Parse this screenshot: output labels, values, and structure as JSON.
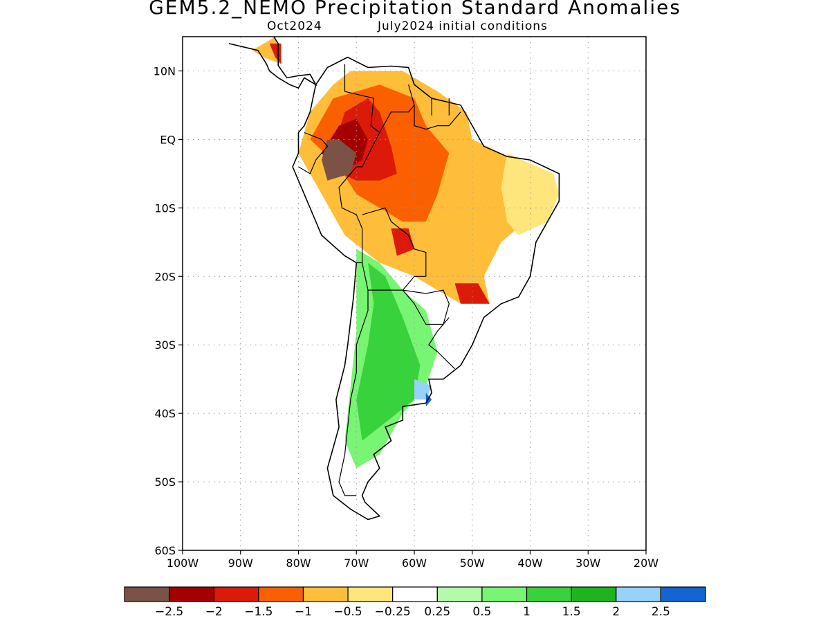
{
  "title": "GEM5.2_NEMO Precipitation Standard Anomalies",
  "subtitle_month": "Oct2024",
  "subtitle_init": "July2024 initial conditions",
  "map": {
    "lon_range": [
      -100,
      -20
    ],
    "lat_range": [
      -60,
      15
    ],
    "grid": "dotted",
    "lat_ticks": [
      {
        "value": 10,
        "label": "10N"
      },
      {
        "value": 0,
        "label": "EQ"
      },
      {
        "value": -10,
        "label": "10S"
      },
      {
        "value": -20,
        "label": "20S"
      },
      {
        "value": -30,
        "label": "30S"
      },
      {
        "value": -40,
        "label": "40S"
      },
      {
        "value": -50,
        "label": "50S"
      },
      {
        "value": -60,
        "label": "60S"
      }
    ],
    "lon_ticks": [
      {
        "value": -100,
        "label": "100W"
      },
      {
        "value": -90,
        "label": "90W"
      },
      {
        "value": -80,
        "label": "80W"
      },
      {
        "value": -70,
        "label": "70W"
      },
      {
        "value": -60,
        "label": "60W"
      },
      {
        "value": -50,
        "label": "50W"
      },
      {
        "value": -40,
        "label": "40W"
      },
      {
        "value": -30,
        "label": "30W"
      },
      {
        "value": -20,
        "label": "20W"
      }
    ]
  },
  "legend": {
    "colors": [
      "#7b5246",
      "#a50000",
      "#dc1a0a",
      "#fa6000",
      "#ffbe3a",
      "#ffe67c",
      "#ffffff",
      "#b3faaa",
      "#78f572",
      "#37d23c",
      "#1eb41e",
      "#96d2fa",
      "#1464d2"
    ],
    "labels": [
      "−2.5",
      "−2",
      "−1.5",
      "−1",
      "−0.5",
      "−0.25",
      "0.25",
      "0.5",
      "1",
      "1.5",
      "2",
      "2.5"
    ]
  },
  "anomaly_regions": [
    {
      "category": "dry_moderate",
      "color": "#ffbe3a",
      "lonlat": [
        [
          -71,
          10
        ],
        [
          -62,
          10
        ],
        [
          -56,
          7
        ],
        [
          -51,
          4
        ],
        [
          -50,
          0
        ],
        [
          -45,
          -2
        ],
        [
          -40,
          -5
        ],
        [
          -38,
          -10
        ],
        [
          -45,
          -15
        ],
        [
          -48,
          -20
        ],
        [
          -47,
          -24
        ],
        [
          -52,
          -24
        ],
        [
          -56,
          -22
        ],
        [
          -60,
          -20
        ],
        [
          -66,
          -18
        ],
        [
          -72,
          -14
        ],
        [
          -76,
          -8
        ],
        [
          -80,
          -2
        ],
        [
          -78,
          4
        ],
        [
          -74,
          8
        ]
      ]
    },
    {
      "category": "dry_weak",
      "color": "#ffe67c",
      "lonlat": [
        [
          -44,
          -2
        ],
        [
          -36,
          -5
        ],
        [
          -35,
          -8
        ],
        [
          -37,
          -12
        ],
        [
          -42,
          -14
        ],
        [
          -44,
          -12
        ],
        [
          -45,
          -7
        ]
      ]
    },
    {
      "category": "dry_strong",
      "color": "#fa6000",
      "lonlat": [
        [
          -74,
          6
        ],
        [
          -66,
          8
        ],
        [
          -60,
          6
        ],
        [
          -58,
          2
        ],
        [
          -54,
          -2
        ],
        [
          -56,
          -8
        ],
        [
          -58,
          -12
        ],
        [
          -62,
          -12
        ],
        [
          -66,
          -10
        ],
        [
          -70,
          -8
        ],
        [
          -73,
          -4
        ],
        [
          -78,
          0
        ]
      ]
    },
    {
      "category": "dry_very_strong",
      "color": "#dc1a0a",
      "lonlat": [
        [
          -72,
          4
        ],
        [
          -68,
          6
        ],
        [
          -66,
          4
        ],
        [
          -64,
          -1
        ],
        [
          -63,
          -5
        ],
        [
          -66,
          -6
        ],
        [
          -70,
          -6
        ],
        [
          -75,
          -4
        ]
      ]
    },
    {
      "category": "dry_very_strong",
      "color": "#dc1a0a",
      "lonlat": [
        [
          -64,
          -13
        ],
        [
          -61,
          -13
        ],
        [
          -60,
          -16
        ],
        [
          -63,
          -17
        ]
      ]
    },
    {
      "category": "dry_very_strong",
      "color": "#dc1a0a",
      "lonlat": [
        [
          -53,
          -21
        ],
        [
          -49,
          -21
        ],
        [
          -47,
          -24
        ],
        [
          -52,
          -24
        ]
      ]
    },
    {
      "category": "dry_extreme",
      "color": "#a50000",
      "lonlat": [
        [
          -73,
          2
        ],
        [
          -70,
          3
        ],
        [
          -68,
          0
        ],
        [
          -69,
          -3
        ],
        [
          -73,
          -5
        ],
        [
          -76,
          -2
        ]
      ]
    },
    {
      "category": "dry_exceptional",
      "color": "#7b5246",
      "lonlat": [
        [
          -75,
          0
        ],
        [
          -73,
          0
        ],
        [
          -70,
          -2
        ],
        [
          -71,
          -5
        ],
        [
          -75,
          -6
        ],
        [
          -76,
          -3
        ]
      ]
    },
    {
      "category": "wet_moderate",
      "color": "#78f572",
      "lonlat": [
        [
          -70,
          -16
        ],
        [
          -66,
          -18
        ],
        [
          -62,
          -22
        ],
        [
          -58,
          -25
        ],
        [
          -56,
          -31
        ],
        [
          -58,
          -36
        ],
        [
          -62,
          -40
        ],
        [
          -66,
          -46
        ],
        [
          -70,
          -48
        ],
        [
          -72,
          -44
        ],
        [
          -71,
          -36
        ],
        [
          -70,
          -28
        ],
        [
          -70,
          -20
        ]
      ]
    },
    {
      "category": "wet_strong",
      "color": "#37d23c",
      "lonlat": [
        [
          -68,
          -18
        ],
        [
          -65,
          -20
        ],
        [
          -62,
          -26
        ],
        [
          -59,
          -33
        ],
        [
          -60,
          -38
        ],
        [
          -66,
          -42
        ],
        [
          -69,
          -44
        ],
        [
          -70,
          -38
        ],
        [
          -68,
          -30
        ],
        [
          -67,
          -24
        ]
      ]
    },
    {
      "category": "wet_very_strong",
      "color": "#96d2fa",
      "lonlat": [
        [
          -60,
          -35
        ],
        [
          -57,
          -36
        ],
        [
          -58,
          -38
        ],
        [
          -60,
          -38
        ]
      ]
    },
    {
      "category": "wet_extreme",
      "color": "#1464d2",
      "lonlat": [
        [
          -58,
          -37
        ],
        [
          -57,
          -38
        ],
        [
          -58,
          -39
        ]
      ]
    },
    {
      "category": "dry_moderate",
      "color": "#ffbe3a",
      "lonlat": [
        [
          -88,
          13
        ],
        [
          -84,
          15
        ],
        [
          -83,
          11
        ],
        [
          -86,
          12
        ]
      ]
    },
    {
      "category": "dry_strong",
      "color": "#dc1a0a",
      "lonlat": [
        [
          -85,
          14
        ],
        [
          -83,
          14
        ],
        [
          -83,
          11
        ],
        [
          -84,
          12
        ]
      ]
    }
  ],
  "coastlines": [
    {
      "name": "south_america",
      "lonlat": [
        [
          -77,
          8
        ],
        [
          -75,
          10.5
        ],
        [
          -71.5,
          12
        ],
        [
          -68,
          10.5
        ],
        [
          -64,
          10.7
        ],
        [
          -61,
          10.5
        ],
        [
          -60,
          8
        ],
        [
          -57,
          6
        ],
        [
          -52,
          5
        ],
        [
          -50,
          2
        ],
        [
          -48,
          -1
        ],
        [
          -44,
          -2.5
        ],
        [
          -40,
          -3
        ],
        [
          -35,
          -5
        ],
        [
          -35,
          -9
        ],
        [
          -37,
          -12
        ],
        [
          -39,
          -15
        ],
        [
          -40,
          -20
        ],
        [
          -42,
          -23
        ],
        [
          -45,
          -24
        ],
        [
          -48,
          -26
        ],
        [
          -50,
          -30
        ],
        [
          -52,
          -33
        ],
        [
          -55,
          -35
        ],
        [
          -57.5,
          -35
        ],
        [
          -57,
          -37
        ],
        [
          -58,
          -38.5
        ],
        [
          -62,
          -39
        ],
        [
          -62,
          -41
        ],
        [
          -65,
          -42
        ],
        [
          -64,
          -44
        ],
        [
          -67,
          -46
        ],
        [
          -66,
          -48
        ],
        [
          -68,
          -50
        ],
        [
          -69,
          -52
        ],
        [
          -68.5,
          -53
        ],
        [
          -66,
          -55
        ],
        [
          -68,
          -55.5
        ],
        [
          -71,
          -54
        ],
        [
          -74,
          -52
        ],
        [
          -75,
          -48
        ],
        [
          -74,
          -45
        ],
        [
          -73,
          -42
        ],
        [
          -73.5,
          -38
        ],
        [
          -72,
          -33
        ],
        [
          -71.5,
          -30
        ],
        [
          -70.5,
          -23
        ],
        [
          -70,
          -18
        ],
        [
          -72,
          -17
        ],
        [
          -76,
          -14
        ],
        [
          -78,
          -10
        ],
        [
          -80,
          -6
        ],
        [
          -81,
          -4
        ],
        [
          -80,
          -2
        ],
        [
          -80,
          1
        ],
        [
          -79,
          2
        ],
        [
          -78,
          4
        ],
        [
          -77.5,
          6
        ],
        [
          -77,
          8
        ]
      ]
    },
    {
      "name": "central_america",
      "lonlat": [
        [
          -92,
          14
        ],
        [
          -88,
          13.2
        ],
        [
          -87,
          13
        ],
        [
          -85.5,
          11
        ],
        [
          -85,
          10
        ],
        [
          -83.5,
          9
        ],
        [
          -81.5,
          8
        ],
        [
          -80,
          7.5
        ],
        [
          -79,
          9
        ],
        [
          -77,
          8
        ],
        [
          -78,
          9.5
        ],
        [
          -80,
          9.3
        ],
        [
          -82,
          9
        ],
        [
          -83.5,
          10.8
        ],
        [
          -83.5,
          14
        ],
        [
          -85,
          16
        ],
        [
          -88,
          15.8
        ],
        [
          -88.5,
          17
        ],
        [
          -87.5,
          18
        ],
        [
          -87.5,
          21.5
        ],
        [
          -90,
          21
        ],
        [
          -91,
          19
        ],
        [
          -94,
          18.5
        ]
      ]
    }
  ],
  "borders": [
    {
      "lonlat": [
        [
          -72,
          11
        ],
        [
          -72,
          7
        ],
        [
          -67,
          6
        ],
        [
          -67.5,
          2
        ],
        [
          -66,
          1
        ],
        [
          -69,
          -4
        ],
        [
          -70,
          -4
        ]
      ]
    },
    {
      "lonlat": [
        [
          -79,
          1
        ],
        [
          -76,
          0
        ],
        [
          -75,
          -1
        ],
        [
          -77,
          -3
        ],
        [
          -78,
          -5
        ],
        [
          -80,
          -4
        ]
      ]
    },
    {
      "lonlat": [
        [
          -70,
          -4
        ],
        [
          -73,
          -7
        ],
        [
          -72.5,
          -10
        ],
        [
          -70,
          -11
        ],
        [
          -69,
          -13
        ],
        [
          -69,
          -18
        ],
        [
          -70,
          -18
        ]
      ]
    },
    {
      "lonlat": [
        [
          -61,
          8
        ],
        [
          -60,
          5
        ],
        [
          -60,
          2
        ],
        [
          -58,
          1.5
        ],
        [
          -56,
          2
        ],
        [
          -54,
          2
        ],
        [
          -52,
          4
        ]
      ]
    },
    {
      "lonlat": [
        [
          -57,
          6
        ],
        [
          -57,
          3.5
        ]
      ]
    },
    {
      "lonlat": [
        [
          -54,
          6
        ],
        [
          -54,
          3.5
        ]
      ]
    },
    {
      "lonlat": [
        [
          -66,
          1
        ],
        [
          -64,
          4
        ],
        [
          -61,
          4
        ],
        [
          -60,
          5
        ]
      ]
    },
    {
      "lonlat": [
        [
          -69,
          -11
        ],
        [
          -65,
          -10
        ],
        [
          -64,
          -12
        ],
        [
          -61,
          -14
        ],
        [
          -60,
          -16
        ],
        [
          -58,
          -16.5
        ],
        [
          -58,
          -20
        ]
      ]
    },
    {
      "lonlat": [
        [
          -69,
          -18
        ],
        [
          -68,
          -22
        ],
        [
          -62,
          -22
        ],
        [
          -60,
          -20
        ],
        [
          -58,
          -20
        ]
      ]
    },
    {
      "lonlat": [
        [
          -62,
          -22
        ],
        [
          -58,
          -22.5
        ],
        [
          -55,
          -22
        ],
        [
          -54,
          -24
        ],
        [
          -55,
          -27
        ],
        [
          -58,
          -27
        ],
        [
          -60,
          -24
        ],
        [
          -62,
          -22
        ]
      ]
    },
    {
      "lonlat": [
        [
          -54,
          -26
        ],
        [
          -56,
          -28
        ],
        [
          -57.5,
          -30
        ],
        [
          -56,
          -31
        ],
        [
          -53,
          -33.5
        ]
      ]
    },
    {
      "lonlat": [
        [
          -68,
          -22
        ],
        [
          -68,
          -25
        ],
        [
          -70,
          -30
        ],
        [
          -70,
          -34
        ],
        [
          -71,
          -38
        ],
        [
          -71.5,
          -42
        ],
        [
          -72,
          -46
        ],
        [
          -73,
          -50
        ],
        [
          -72,
          -52
        ],
        [
          -70,
          -52
        ]
      ]
    }
  ]
}
